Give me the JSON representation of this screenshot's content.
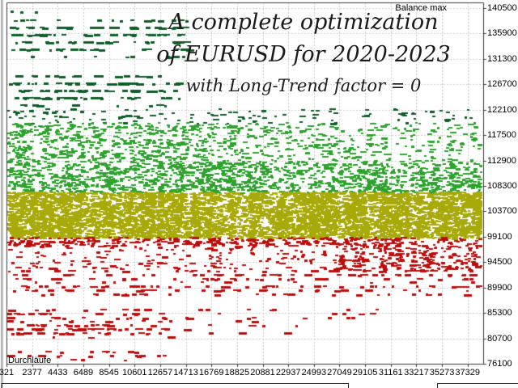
{
  "chart_data": {
    "type": "scatter",
    "title_lines": [
      "A complete optimization",
      "of EURUSD for 2020-2023",
      "with Long-Trend factor = 0"
    ],
    "x_axis": {
      "label": "Durchläufe",
      "min": 321,
      "max": 37329,
      "tick_step": 2056,
      "ticks": [
        321,
        2377,
        4433,
        6489,
        8545,
        10601,
        12657,
        14713,
        16769,
        18825,
        20881,
        22937,
        24993,
        27049,
        29105,
        31161,
        33217,
        35273,
        37329
      ]
    },
    "y_axis": {
      "label": "Balance max",
      "min": 76100,
      "max": 140500,
      "tick_step": 4600,
      "ticks": [
        140500,
        135900,
        131300,
        126700,
        122100,
        117500,
        112900,
        108300,
        103700,
        99100,
        94500,
        89900,
        85300,
        80700,
        76100
      ]
    },
    "grid": {
      "visible": true,
      "style": "dashed"
    },
    "legend_position": "top-right",
    "colors": {
      "profit_high": "#0e5c28",
      "profit": "#2da22d",
      "breakeven": "#a8aa0a",
      "loss": "#c00b0b",
      "grid": "#c9c9c9",
      "axis": "#3a3a3a",
      "text": "#000000"
    },
    "notable_points": [
      {
        "pass": 650,
        "balance": 140000,
        "color": "profit_high"
      },
      {
        "pass": 1400,
        "balance": 139900,
        "color": "profit_high"
      },
      {
        "pass": 2600,
        "balance": 139900,
        "color": "profit_high"
      }
    ],
    "bands": [
      {
        "name": "top-cluster-rows-a",
        "color": "profit_high",
        "pass": [
          450,
          14740
        ],
        "balance": [
          132000,
          138450
        ],
        "density": 0.15,
        "snap": 9
      },
      {
        "name": "top-cluster-rows-b",
        "color": "profit_high",
        "pass": [
          450,
          14420
        ],
        "balance": [
          123230,
          128350
        ],
        "density": 0.17,
        "snap": 9
      },
      {
        "name": "high-profit-scatter",
        "color": "profit_high",
        "pass": [
          321,
          38400
        ],
        "balance": [
          119700,
          122350
        ],
        "density": 0.11
      },
      {
        "name": "green-upper-left",
        "color": "profit",
        "pass": [
          321,
          19000
        ],
        "balance": [
          112690,
          119860
        ],
        "density": 0.38
      },
      {
        "name": "green-upper-right",
        "color": "profit",
        "pass": [
          19000,
          38400
        ],
        "balance": [
          112690,
          119860
        ],
        "density": 0.2
      },
      {
        "name": "green-lower-left",
        "color": "profit",
        "pass": [
          321,
          19000
        ],
        "balance": [
          107130,
          112690
        ],
        "density": 0.7
      },
      {
        "name": "green-lower-right",
        "color": "profit",
        "pass": [
          19000,
          38400
        ],
        "balance": [
          107130,
          112690
        ],
        "density": 0.55
      },
      {
        "name": "breakeven-band",
        "color": "breakeven",
        "pass": [
          321,
          38400
        ],
        "balance": [
          98930,
          107280
        ],
        "density": 1.65
      },
      {
        "name": "red-strip",
        "color": "loss",
        "pass": [
          321,
          38400
        ],
        "balance": [
          97470,
          99080
        ],
        "density": 0.55
      },
      {
        "name": "red-zone-left",
        "color": "loss",
        "pass": [
          321,
          27000
        ],
        "balance": [
          93230,
          97470
        ],
        "density": 0.14
      },
      {
        "name": "red-zone-right",
        "color": "loss",
        "pass": [
          27000,
          38400
        ],
        "balance": [
          93230,
          97470
        ],
        "density": 0.5
      },
      {
        "name": "red-row-1",
        "color": "loss",
        "pass": [
          321,
          38400
        ],
        "balance": [
          91320,
          93080
        ],
        "density": 0.16,
        "snap": 5
      },
      {
        "name": "red-row-2",
        "color": "loss",
        "pass": [
          321,
          38400
        ],
        "balance": [
          88840,
          91030
        ],
        "density": 0.12,
        "snap": 5
      },
      {
        "name": "red-row-3a",
        "color": "loss",
        "pass": [
          321,
          13500
        ],
        "balance": [
          84450,
          86060
        ],
        "density": 0.17,
        "snap": 5
      },
      {
        "name": "red-row-3b",
        "color": "loss",
        "pass": [
          13500,
          30000
        ],
        "balance": [
          84450,
          86060
        ],
        "density": 0.07,
        "snap": 5
      },
      {
        "name": "red-row-4a",
        "color": "loss",
        "pass": [
          321,
          13500
        ],
        "balance": [
          81200,
          83980
        ],
        "density": 0.2,
        "snap": 5
      },
      {
        "name": "red-row-4b",
        "color": "loss",
        "pass": [
          13500,
          24000
        ],
        "balance": [
          81200,
          83980
        ],
        "density": 0.035,
        "snap": 5
      },
      {
        "name": "red-row-5",
        "color": "loss",
        "pass": [
          321,
          13500
        ],
        "balance": [
          77100,
          78420
        ],
        "density": 0.14,
        "snap": 5
      }
    ]
  }
}
